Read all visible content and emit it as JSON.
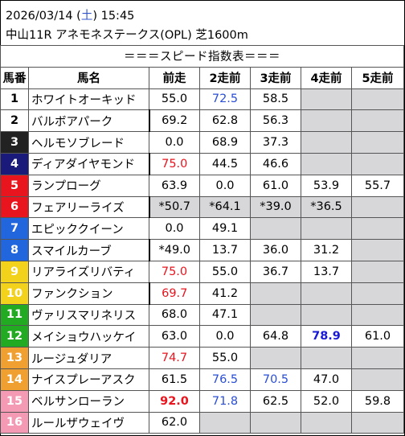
{
  "header": {
    "date_prefix": "2026/03/14 (",
    "day_of_week": "土",
    "date_suffix": ") 15:45",
    "race": "中山11R アネモネステークス(OPL) 芝1600m"
  },
  "table": {
    "title": "＝＝＝スピード指数表＝＝＝",
    "columns": [
      "馬番",
      "馬名",
      "前走",
      "2走前",
      "3走前",
      "4走前",
      "5走前"
    ],
    "colors": {
      "frame1": "#ffffff",
      "frame2": "#ffffff",
      "frame3": "#222222",
      "frame4": "#1a1a7a",
      "frame5": "#e8141e",
      "frame6": "#2266dd",
      "frame7": "#f2d21a",
      "frame8": "#22aa22",
      "red_text": "#e8141e",
      "blue_text": "#2a4ed6",
      "gray_cell": "#d7d7d9"
    },
    "rows": [
      {
        "num": "1",
        "name": "ホワイトオーキッド",
        "v": [
          "55.0",
          "72.5",
          "58.5",
          "",
          ""
        ]
      },
      {
        "num": "2",
        "name": "バルボアパーク",
        "v": [
          "69.2",
          "62.8",
          "56.3",
          "",
          ""
        ]
      },
      {
        "num": "3",
        "name": "ヘルモソブレード",
        "v": [
          "0.0",
          "68.9",
          "37.3",
          "",
          ""
        ]
      },
      {
        "num": "4",
        "name": "ディアダイヤモンド",
        "v": [
          "75.0",
          "44.5",
          "46.6",
          "",
          ""
        ]
      },
      {
        "num": "5",
        "name": "ランプローグ",
        "v": [
          "63.9",
          "0.0",
          "61.0",
          "53.9",
          "55.7"
        ]
      },
      {
        "num": "6",
        "name": "フェアリーライズ",
        "v": [
          "*50.7",
          "*64.1",
          "*39.0",
          "*36.5",
          ""
        ]
      },
      {
        "num": "7",
        "name": "エピッククイーン",
        "v": [
          "0.0",
          "49.1",
          "",
          "",
          ""
        ]
      },
      {
        "num": "8",
        "name": "スマイルカーブ",
        "v": [
          "*49.0",
          "13.7",
          "36.0",
          "31.2",
          ""
        ]
      },
      {
        "num": "9",
        "name": "リアライズリバティ",
        "v": [
          "75.0",
          "55.0",
          "36.7",
          "13.7",
          ""
        ]
      },
      {
        "num": "10",
        "name": "ファンクション",
        "v": [
          "69.7",
          "41.2",
          "",
          "",
          ""
        ]
      },
      {
        "num": "11",
        "name": "ヴァリスマリネリス",
        "v": [
          "68.0",
          "47.1",
          "",
          "",
          ""
        ]
      },
      {
        "num": "12",
        "name": "メイショウハッケイ",
        "v": [
          "63.0",
          "0.0",
          "64.8",
          "78.9",
          "61.0"
        ]
      },
      {
        "num": "13",
        "name": "ルージュダリア",
        "v": [
          "74.7",
          "55.0",
          "",
          "",
          ""
        ]
      },
      {
        "num": "14",
        "name": "ナイスプレーアスク",
        "v": [
          "61.5",
          "76.5",
          "70.5",
          "47.0",
          ""
        ]
      },
      {
        "num": "15",
        "name": "ベルサンローラン",
        "v": [
          "92.0",
          "71.8",
          "62.5",
          "52.0",
          "59.8"
        ]
      },
      {
        "num": "16",
        "name": "ルールザウェイヴ",
        "v": [
          "62.0",
          "",
          "",
          "",
          ""
        ]
      }
    ]
  }
}
